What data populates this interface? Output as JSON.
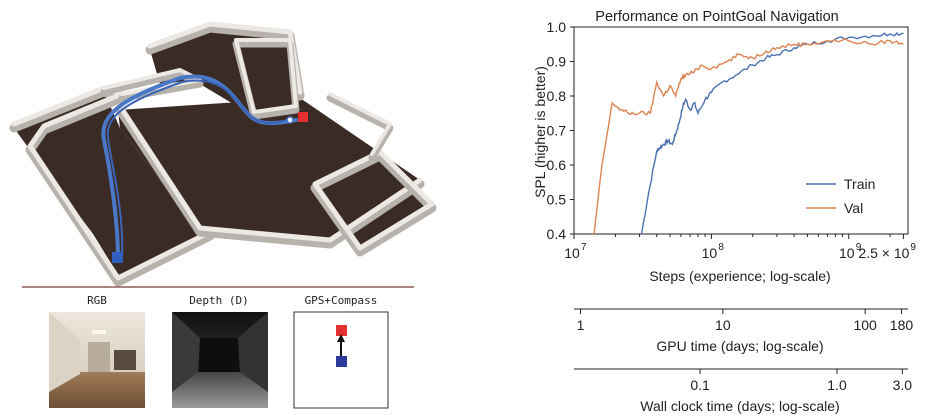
{
  "left_panel": {
    "sensor_labels": [
      "RGB",
      "Depth (D)",
      "GPS+Compass"
    ],
    "colors": {
      "path": "#4a78c8",
      "goal": "#e53030",
      "start": "#2f5fbf",
      "floor": "#3a2b24",
      "wall_top": "#ece8e3",
      "wall_side": "#b7b2ac",
      "divider": "#7a3a36"
    }
  },
  "chart_data": {
    "type": "line",
    "title": "Performance on PointGoal Navigation",
    "xlabel": "Steps (experience; log-scale)",
    "ylabel": "SPL (higher is better)",
    "xscale": "log",
    "xlim": [
      10000000,
      2700000000
    ],
    "ylim": [
      0.4,
      1.0
    ],
    "xticks": [
      {
        "value": 10000000,
        "base": "10",
        "exp": "7",
        "label": ""
      },
      {
        "value": 100000000,
        "base": "10",
        "exp": "8",
        "label": ""
      },
      {
        "value": 1000000000,
        "base": "10",
        "exp": "9",
        "label": ""
      },
      {
        "value": 2500000000,
        "base": "",
        "exp": "9",
        "label": "2.5 × 10"
      }
    ],
    "yticks": [
      "0.4",
      "0.5",
      "0.6",
      "0.7",
      "0.8",
      "0.9",
      "1.0"
    ],
    "legend": {
      "position": "lower-right"
    },
    "series": [
      {
        "name": "Train",
        "color": "#4c72b0",
        "x": [
          31000000,
          35000000,
          40000000,
          42000000,
          45000000,
          48000000,
          52000000,
          55000000,
          58000000,
          62000000,
          65000000,
          70000000,
          75000000,
          80000000,
          90000000,
          100000000,
          120000000,
          150000000,
          200000000,
          250000000,
          300000000,
          400000000,
          500000000,
          700000000,
          1000000000,
          1500000000,
          2000000000,
          2500000000
        ],
        "y": [
          0.4,
          0.52,
          0.64,
          0.65,
          0.66,
          0.67,
          0.66,
          0.69,
          0.72,
          0.77,
          0.79,
          0.76,
          0.78,
          0.75,
          0.79,
          0.81,
          0.84,
          0.86,
          0.89,
          0.91,
          0.92,
          0.94,
          0.95,
          0.96,
          0.97,
          0.975,
          0.98,
          0.982
        ]
      },
      {
        "name": "Val",
        "color": "#dd8452",
        "x": [
          14000000,
          16000000,
          19000000,
          22000000,
          25000000,
          30000000,
          36000000,
          40000000,
          45000000,
          50000000,
          55000000,
          60000000,
          65000000,
          75000000,
          85000000,
          100000000,
          130000000,
          160000000,
          200000000,
          250000000,
          300000000,
          400000000,
          500000000,
          700000000,
          1000000000,
          1500000000,
          2000000000,
          2500000000
        ],
        "y": [
          0.4,
          0.6,
          0.78,
          0.76,
          0.75,
          0.75,
          0.75,
          0.84,
          0.8,
          0.83,
          0.8,
          0.85,
          0.86,
          0.87,
          0.89,
          0.88,
          0.9,
          0.92,
          0.91,
          0.93,
          0.94,
          0.95,
          0.95,
          0.96,
          0.96,
          0.95,
          0.96,
          0.95
        ]
      }
    ]
  },
  "secondary_axes": [
    {
      "label": "GPU time (days; log-scale)",
      "ticks": [
        "1",
        "10",
        "100",
        "180"
      ],
      "values": [
        1,
        10,
        100,
        180
      ],
      "min": 0.9,
      "max": 200
    },
    {
      "label": "Wall clock time (days; log-scale)",
      "ticks": [
        "0.1",
        "1.0",
        "3.0"
      ],
      "values": [
        0.1,
        1.0,
        3.0
      ],
      "min": 0.012,
      "max": 3.3
    }
  ]
}
